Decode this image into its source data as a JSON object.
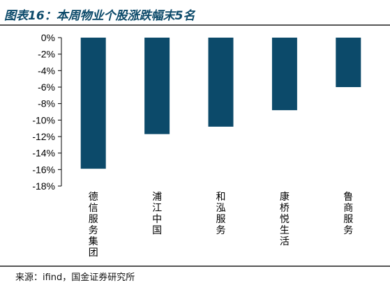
{
  "title": "图表16：本周物业个股涨跌幅末5名",
  "source": "来源：ifind，国金证券研究所",
  "chart_data": {
    "type": "bar",
    "categories": [
      "德信服务集团",
      "浦江中国",
      "和泓服务",
      "康桥悦生活",
      "鲁商服务"
    ],
    "values": [
      -15.9,
      -11.7,
      -10.8,
      -8.8,
      -6.0
    ],
    "ylim": [
      -18,
      0
    ],
    "yticks": [
      0,
      -2,
      -4,
      -6,
      -8,
      -10,
      -12,
      -14,
      -16,
      -18
    ],
    "ytick_labels": [
      "0%",
      "-2%",
      "-4%",
      "-6%",
      "-8%",
      "-10%",
      "-12%",
      "-14%",
      "-16%",
      "-18%"
    ],
    "bar_color": "#0c4a6a",
    "grid": false,
    "legend": false
  }
}
